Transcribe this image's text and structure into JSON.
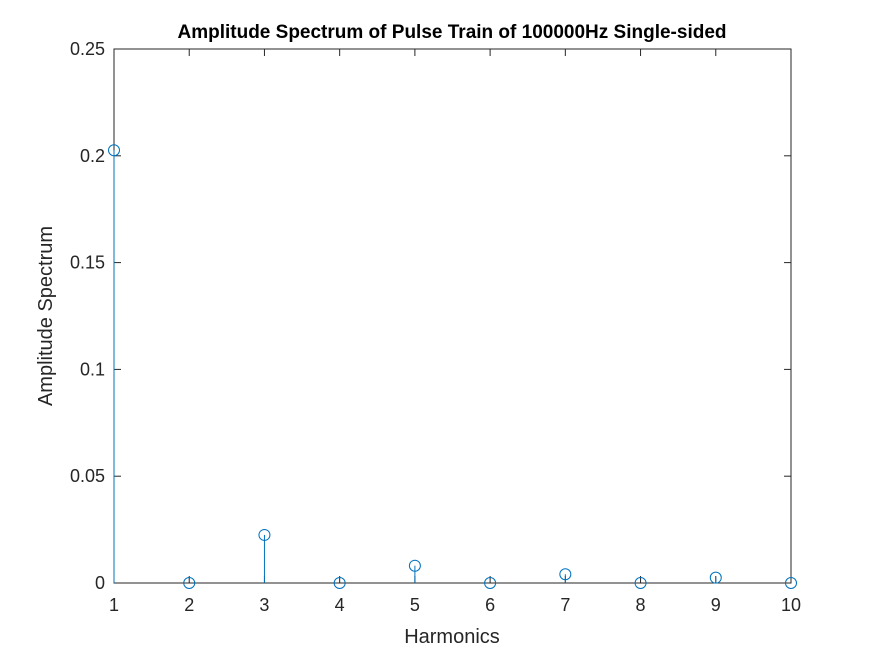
{
  "chart_data": {
    "type": "stem",
    "title": "Amplitude Spectrum of Pulse Train of 100000Hz Single-sided",
    "xlabel": "Harmonics",
    "ylabel": "Amplitude Spectrum",
    "xlim": [
      1,
      10
    ],
    "ylim": [
      0,
      0.25
    ],
    "xticks": [
      1,
      2,
      3,
      4,
      5,
      6,
      7,
      8,
      9,
      10
    ],
    "xtick_labels": [
      "1",
      "2",
      "3",
      "4",
      "5",
      "6",
      "7",
      "8",
      "9",
      "10"
    ],
    "yticks": [
      0,
      0.05,
      0.1,
      0.15,
      0.2,
      0.25
    ],
    "ytick_labels": [
      "0",
      "0.05",
      "0.1",
      "0.15",
      "0.2",
      "0.25"
    ],
    "x": [
      1,
      2,
      3,
      4,
      5,
      6,
      7,
      8,
      9,
      10
    ],
    "y": [
      0.2026,
      0.0,
      0.0225,
      0.0,
      0.0081,
      0.0,
      0.0041,
      0.0,
      0.0025,
      0.0
    ],
    "marker": "circle-open",
    "grid": false,
    "box": true,
    "series_color": "#0072BD",
    "axis_color": "#262626"
  }
}
